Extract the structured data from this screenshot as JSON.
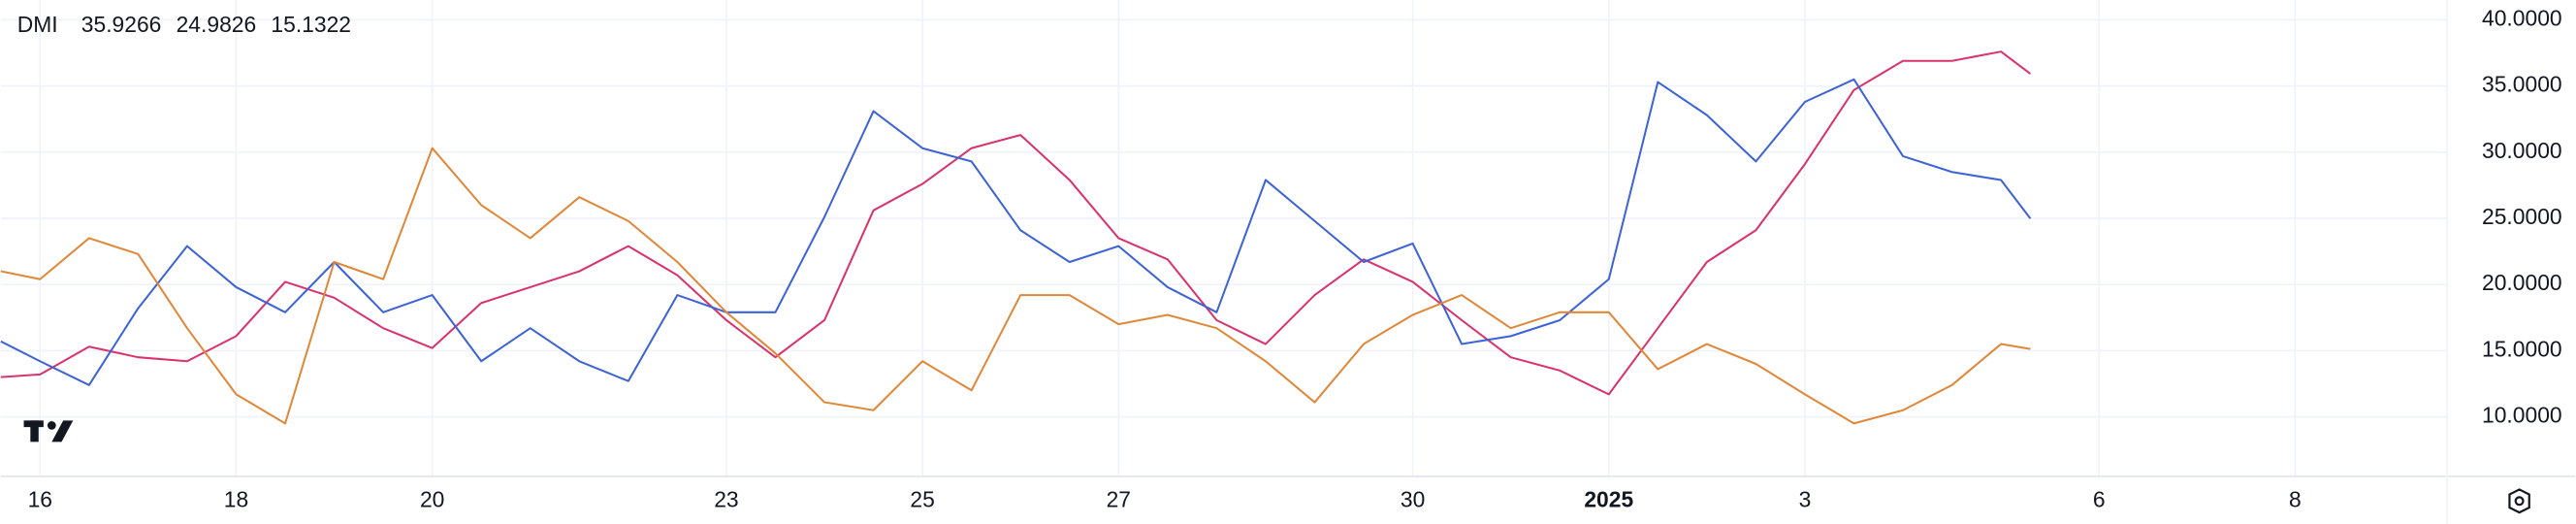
{
  "chart_data": {
    "type": "line",
    "title": "DMI",
    "x": [
      -0.4,
      0,
      0.5,
      1,
      1.5,
      2,
      2.5,
      3,
      3.5,
      4,
      4.5,
      5,
      5.5,
      6,
      6.5,
      7,
      7.5,
      8,
      8.5,
      9,
      9.5,
      10,
      10.5,
      11,
      11.5,
      12,
      12.5,
      13,
      13.5,
      14,
      14.5,
      15,
      15.5,
      16,
      16.5,
      17,
      17.5,
      18,
      18.5,
      19,
      19.5,
      20,
      20.3
    ],
    "series": [
      {
        "name": "35.9266",
        "color": "#d9336b",
        "values": [
          13.0,
          13.2,
          15.3,
          14.5,
          14.2,
          16.1,
          20.2,
          19.0,
          16.7,
          15.2,
          18.6,
          19.8,
          21.0,
          22.9,
          20.7,
          17.3,
          14.5,
          17.3,
          25.6,
          27.6,
          30.3,
          31.3,
          27.9,
          23.5,
          21.9,
          17.3,
          15.5,
          19.2,
          21.9,
          20.2,
          17.3,
          14.5,
          13.5,
          11.7,
          16.7,
          21.7,
          24.1,
          29.1,
          34.7,
          36.9,
          36.9,
          37.6,
          35.9266
        ]
      },
      {
        "name": "24.9826",
        "color": "#3d63d6",
        "values": [
          15.7,
          14.2,
          12.4,
          18.2,
          22.9,
          19.8,
          17.9,
          21.7,
          17.9,
          19.2,
          14.2,
          16.7,
          14.2,
          12.7,
          19.2,
          17.9,
          17.9,
          25.1,
          33.1,
          30.3,
          29.3,
          24.1,
          21.7,
          22.9,
          19.8,
          17.9,
          27.9,
          24.8,
          21.7,
          23.1,
          15.5,
          16.1,
          17.3,
          20.4,
          35.3,
          32.8,
          29.3,
          33.8,
          35.5,
          29.7,
          28.5,
          27.9,
          24.9826
        ]
      },
      {
        "name": "15.1322",
        "color": "#e0883a",
        "values": [
          21.0,
          20.4,
          23.5,
          22.3,
          16.7,
          11.7,
          9.5,
          21.7,
          20.4,
          30.3,
          26.0,
          23.5,
          26.6,
          24.8,
          21.7,
          17.9,
          14.8,
          11.1,
          10.5,
          14.2,
          12.0,
          19.2,
          19.2,
          17.0,
          17.7,
          16.7,
          14.2,
          11.1,
          15.5,
          17.7,
          19.2,
          16.7,
          17.9,
          17.9,
          13.6,
          15.5,
          14.0,
          11.7,
          9.5,
          10.5,
          12.4,
          15.5,
          15.1322
        ]
      }
    ],
    "xlim": [
      -0.4,
      24.55
    ],
    "xticks": [
      {
        "value": 0,
        "label": "16"
      },
      {
        "value": 2,
        "label": "18"
      },
      {
        "value": 4,
        "label": "20"
      },
      {
        "value": 7,
        "label": "23"
      },
      {
        "value": 9,
        "label": "25"
      },
      {
        "value": 11,
        "label": "27"
      },
      {
        "value": 14,
        "label": "30"
      },
      {
        "value": 16,
        "label": "2025"
      },
      {
        "value": 18,
        "label": "3"
      },
      {
        "value": 21,
        "label": "6"
      },
      {
        "value": 23,
        "label": "8"
      }
    ],
    "ylim": [
      5.5,
      41.5
    ],
    "yticks": [
      {
        "value": 10,
        "label": "10.0000"
      },
      {
        "value": 15,
        "label": "15.0000"
      },
      {
        "value": 20,
        "label": "20.0000"
      },
      {
        "value": 25,
        "label": "25.0000"
      },
      {
        "value": 30,
        "label": "30.0000"
      },
      {
        "value": 35,
        "label": "35.0000"
      },
      {
        "value": 40,
        "label": "40.0000"
      }
    ],
    "grid": true
  }
}
